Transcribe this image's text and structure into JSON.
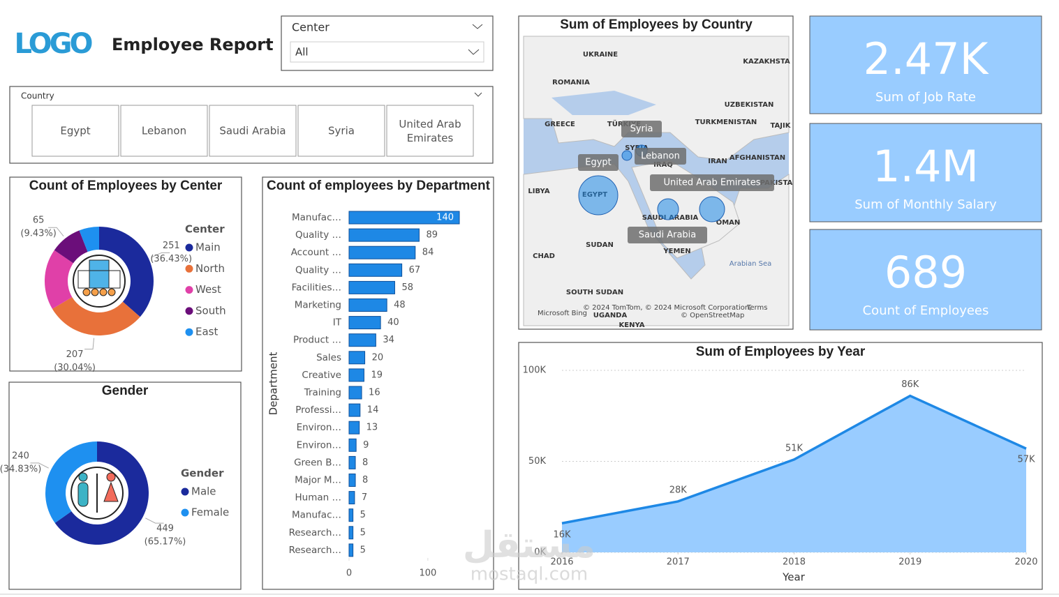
{
  "header": {
    "logo": "LOGO",
    "title": "Employee Report"
  },
  "center_slicer": {
    "label": "Center",
    "value": "All"
  },
  "country_slicer": {
    "label": "Country",
    "options": [
      "Egypt",
      "Lebanon",
      "Saudi Arabia",
      "Syria",
      "United Arab Emirates"
    ]
  },
  "kpis": [
    {
      "value": "2.47K",
      "label": "Sum of Job Rate"
    },
    {
      "value": "1.4M",
      "label": "Sum of Monthly Salary"
    },
    {
      "value": "689",
      "label": "Count of Employees"
    }
  ],
  "map": {
    "title": "Sum of Employees by Country",
    "places": [
      "UKRAINE",
      "ROMANIA",
      "KAZAKHSTA",
      "UZBEKISTAN",
      "GREECE",
      "TÜRKIYE",
      "TURKMENISTAN",
      "TAJIK",
      "SYRIA",
      "IRAQ",
      "IRAN",
      "AFGHANISTAN",
      "LIBYA",
      "EGYPT",
      "SAUDI ARABIA",
      "OMAN",
      "SUDAN",
      "CHAD",
      "YEMEN",
      "SOUTH SUDAN",
      "Arabian Sea",
      "UGANDA",
      "KENYA",
      "PAKISTA"
    ],
    "bubble_labels": [
      "Syria",
      "Lebanon",
      "Egypt",
      "United Arab Emirates",
      "Saudi Arabia"
    ],
    "credits": [
      "Microsoft Bing",
      "© 2024 TomTom, © 2024 Microsoft Corporation,",
      "Terms",
      "© OpenStreetMap"
    ]
  },
  "watermark": {
    "arabic": "مستقل",
    "latin": "mostaql.com"
  },
  "chart_data": [
    {
      "type": "donut",
      "title": "Count of Employees by Center",
      "legend_title": "Center",
      "categories": [
        "Main",
        "North",
        "West",
        "South",
        "East"
      ],
      "values": [
        251,
        207,
        125,
        65,
        41
      ],
      "percent_labels": [
        "(36.43%)",
        "(30.04%)",
        null,
        "(9.43%)",
        null
      ],
      "colors": [
        "#1b2a9c",
        "#e8713a",
        "#e040a8",
        "#6b0e7a",
        "#1e90f0"
      ]
    },
    {
      "type": "donut",
      "title": "Gender",
      "legend_title": "Gender",
      "categories": [
        "Male",
        "Female"
      ],
      "values": [
        449,
        240
      ],
      "percent_labels": [
        "(65.17%)",
        "(34.83%)"
      ],
      "colors": [
        "#1b2a9c",
        "#1e90f0"
      ]
    },
    {
      "type": "hbar",
      "title": "Count of employees by Department",
      "y_label": "Department",
      "color": "#1e88e5",
      "categories": [
        "Manufac…",
        "Quality …",
        "Account …",
        "Quality …",
        "Facilities…",
        "Marketing",
        "IT",
        "Product …",
        "Sales",
        "Creative",
        "Training",
        "Professi…",
        "Environ…",
        "Environ…",
        "Green B…",
        "Major M…",
        "Human …",
        "Manufac…",
        "Research…",
        "Research…"
      ],
      "values": [
        140,
        89,
        84,
        67,
        58,
        48,
        40,
        34,
        20,
        19,
        16,
        14,
        13,
        9,
        8,
        8,
        7,
        5,
        5,
        5
      ],
      "xlim": [
        0,
        140
      ],
      "xticks": [
        0,
        100
      ]
    },
    {
      "type": "area",
      "title": "Sum of Employees by Year",
      "x_label": "Year",
      "color": "#1e88e5",
      "x": [
        2016,
        2017,
        2018,
        2019,
        2020
      ],
      "values": [
        16000,
        28000,
        51000,
        86000,
        57000
      ],
      "value_labels": [
        "16K",
        "28K",
        "51K",
        "86K",
        "57K"
      ],
      "xlim": [
        2016,
        2020
      ],
      "xticks": [
        2016,
        2017,
        2018,
        2019,
        2020
      ],
      "ylim": [
        0,
        100000
      ],
      "yticks": [
        {
          "value": 0,
          "label": "0K"
        },
        {
          "value": 50000,
          "label": "50K"
        },
        {
          "value": 100000,
          "label": "100K"
        }
      ],
      "grid": true
    }
  ]
}
